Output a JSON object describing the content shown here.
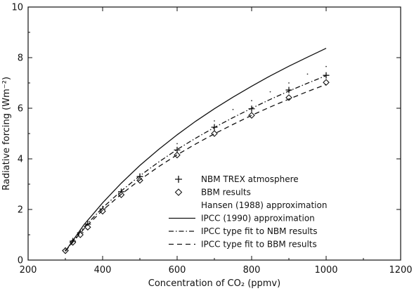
{
  "chart_data": {
    "type": "line",
    "title": "",
    "xlabel": "Concentration of CO₂ (ppmv)",
    "ylabel": "Radiative forcing (Wm⁻²)",
    "xlim": [
      200,
      1200
    ],
    "ylim": [
      0,
      10
    ],
    "xticks": [
      200,
      400,
      600,
      800,
      1000,
      1200
    ],
    "yticks": [
      0,
      2,
      4,
      6,
      8,
      10
    ],
    "grid": false,
    "legend_position": "lower-right",
    "series": [
      {
        "name": "NBM TREX atmosphere",
        "kind": "marker-plus",
        "x": [
          300,
          320,
          340,
          360,
          400,
          450,
          500,
          600,
          700,
          800,
          900,
          1000
        ],
        "y": [
          0.38,
          0.75,
          1.08,
          1.42,
          2.02,
          2.7,
          3.3,
          4.35,
          5.25,
          5.98,
          6.72,
          7.3
        ]
      },
      {
        "name": "BBM results",
        "kind": "marker-diamond",
        "x": [
          300,
          320,
          340,
          360,
          400,
          450,
          500,
          600,
          700,
          800,
          900,
          1000
        ],
        "y": [
          0.37,
          0.7,
          1.0,
          1.3,
          1.93,
          2.58,
          3.15,
          4.15,
          5.0,
          5.72,
          6.42,
          7.02
        ]
      },
      {
        "name": "Hansen (1988) approximation",
        "kind": "dotted",
        "x": [
          300,
          400,
          500,
          600,
          700,
          750,
          800,
          850,
          900,
          950,
          1000
        ],
        "y": [
          0.4,
          2.05,
          3.4,
          4.6,
          5.5,
          5.95,
          6.3,
          6.65,
          7.0,
          7.35,
          7.65
        ]
      },
      {
        "name": "IPCC (1990) approximation",
        "kind": "solid",
        "x": [
          300,
          350,
          400,
          450,
          500,
          550,
          600,
          650,
          700,
          750,
          800,
          850,
          900,
          950,
          1000
        ],
        "y": [
          0.35,
          1.4,
          2.26,
          3.04,
          3.74,
          4.37,
          4.95,
          5.49,
          5.98,
          6.44,
          6.87,
          7.28,
          7.66,
          8.02,
          8.37
        ]
      },
      {
        "name": "IPCC type fit to NBM results",
        "kind": "dash-dot",
        "x": [
          300,
          350,
          400,
          450,
          500,
          550,
          600,
          650,
          700,
          750,
          800,
          850,
          900,
          950,
          1000
        ],
        "y": [
          0.35,
          1.3,
          2.07,
          2.73,
          3.33,
          3.87,
          4.37,
          4.82,
          5.24,
          5.63,
          6.0,
          6.35,
          6.68,
          6.99,
          7.29
        ]
      },
      {
        "name": "IPCC type fit to BBM results",
        "kind": "dashed",
        "x": [
          300,
          350,
          400,
          450,
          500,
          550,
          600,
          650,
          700,
          750,
          800,
          850,
          900,
          950,
          1000
        ],
        "y": [
          0.35,
          1.24,
          1.97,
          2.6,
          3.17,
          3.69,
          4.16,
          4.59,
          4.99,
          5.36,
          5.72,
          6.05,
          6.36,
          6.66,
          6.94
        ]
      }
    ]
  }
}
